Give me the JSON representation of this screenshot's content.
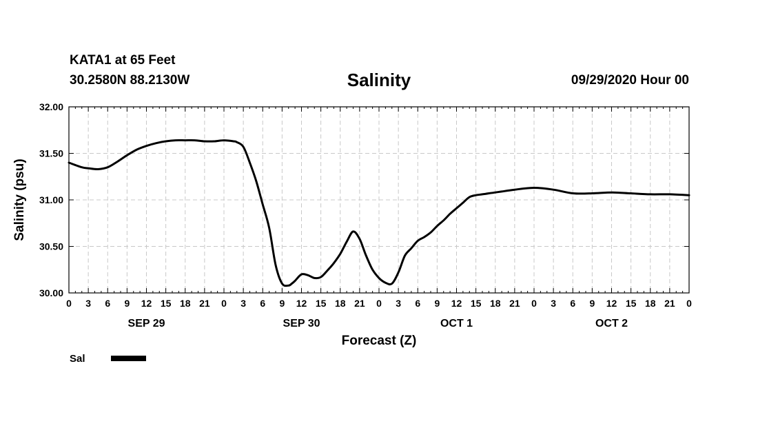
{
  "header": {
    "station": "KATA1 at 65 Feet",
    "coords": "30.2580N 88.2130W",
    "title": "Salinity",
    "run": "09/29/2020 Hour 00"
  },
  "chart_data": {
    "type": "line",
    "title": "Salinity",
    "xlabel": "Forecast (Z)",
    "ylabel": "Salinity (psu)",
    "ylim": [
      30.0,
      32.0
    ],
    "yticks": [
      "30.00",
      "30.50",
      "31.00",
      "31.50",
      "32.00"
    ],
    "xlim": [
      0,
      96
    ],
    "x_tick_labels": [
      "0",
      "3",
      "6",
      "9",
      "12",
      "15",
      "18",
      "21",
      "0",
      "3",
      "6",
      "9",
      "12",
      "15",
      "18",
      "21",
      "0",
      "3",
      "6",
      "9",
      "12",
      "15",
      "18",
      "21",
      "0",
      "3",
      "6",
      "9",
      "12",
      "15",
      "18",
      "21",
      "0"
    ],
    "day_labels": [
      {
        "label": "SEP 29",
        "hour": 12
      },
      {
        "label": "SEP 30",
        "hour": 36
      },
      {
        "label": "OCT 1",
        "hour": 60
      },
      {
        "label": "OCT 2",
        "hour": 84
      }
    ],
    "grid": true,
    "line_color": "#000000",
    "series": [
      {
        "name": "Sal",
        "x": [
          0,
          2,
          3,
          4.5,
          6,
          7.5,
          9,
          10.5,
          12,
          13.5,
          15,
          16.5,
          18,
          19.5,
          21,
          22.5,
          24,
          25.5,
          26,
          27,
          28,
          29,
          30,
          31,
          32,
          33,
          34,
          34.5,
          35,
          36,
          37,
          38,
          39,
          40,
          41,
          42,
          43,
          44,
          45,
          46,
          47,
          48,
          49,
          50,
          51,
          52,
          53,
          54,
          55,
          56,
          57,
          58,
          59,
          60,
          61,
          62,
          63,
          64,
          65,
          66,
          67,
          69,
          72,
          75,
          78,
          81,
          84,
          87,
          90,
          93,
          96
        ],
        "y": [
          31.4,
          31.35,
          31.34,
          31.33,
          31.35,
          31.41,
          31.48,
          31.54,
          31.58,
          31.61,
          31.63,
          31.64,
          31.64,
          31.64,
          31.63,
          31.63,
          31.64,
          31.63,
          31.62,
          31.57,
          31.4,
          31.2,
          30.95,
          30.7,
          30.3,
          30.1,
          30.08,
          30.1,
          30.13,
          30.2,
          30.19,
          30.16,
          30.17,
          30.24,
          30.32,
          30.42,
          30.55,
          30.66,
          30.58,
          30.4,
          30.25,
          30.16,
          30.11,
          30.1,
          30.22,
          30.4,
          30.48,
          30.56,
          30.6,
          30.65,
          30.72,
          30.78,
          30.85,
          30.91,
          30.97,
          31.03,
          31.05,
          31.06,
          31.07,
          31.08,
          31.09,
          31.11,
          31.13,
          31.11,
          31.07,
          31.07,
          31.08,
          31.07,
          31.06,
          31.06,
          31.05
        ]
      }
    ],
    "legend": {
      "placement": "bottom-left",
      "label": "Sal"
    }
  }
}
